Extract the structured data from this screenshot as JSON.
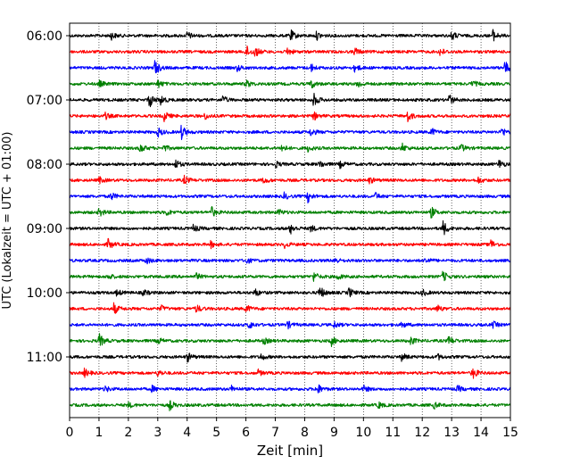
{
  "chart_data": {
    "type": "line",
    "subtype": "helicorder",
    "xlabel": "Zeit  [min]",
    "ylabel": "UTC (Lokalzeit = UTC + 01:00)",
    "xlim": [
      0,
      15
    ],
    "x_ticks": [
      "0",
      "1",
      "2",
      "3",
      "4",
      "5",
      "6",
      "7",
      "8",
      "9",
      "10",
      "11",
      "12",
      "13",
      "14",
      "15"
    ],
    "grid": {
      "vertical_minutes": true,
      "style": "dotted"
    },
    "y_tick_labels": [
      "06:00",
      "07:00",
      "08:00",
      "09:00",
      "10:00",
      "11:00"
    ],
    "trace_colors": [
      "#000000",
      "#ff0000",
      "#0000ff",
      "#008000"
    ],
    "rows": [
      {
        "time": "06:00",
        "color": "#000000",
        "events": [
          [
            1.4,
            0.5
          ],
          [
            4.0,
            0.5
          ],
          [
            7.5,
            0.8
          ],
          [
            8.4,
            0.5
          ],
          [
            13.0,
            0.6
          ],
          [
            14.4,
            0.7
          ]
        ]
      },
      {
        "time": "06:15",
        "color": "#ff0000",
        "events": [
          [
            6.0,
            0.8
          ],
          [
            6.3,
            0.6
          ],
          [
            7.4,
            0.5
          ],
          [
            9.7,
            0.5
          ],
          [
            12.6,
            0.5
          ]
        ]
      },
      {
        "time": "06:30",
        "color": "#0000ff",
        "events": [
          [
            2.9,
            1.0
          ],
          [
            5.7,
            0.4
          ],
          [
            8.2,
            0.5
          ],
          [
            9.7,
            0.5
          ],
          [
            14.8,
            0.9
          ]
        ]
      },
      {
        "time": "06:45",
        "color": "#008000",
        "events": [
          [
            1.0,
            0.4
          ],
          [
            3.0,
            0.5
          ],
          [
            6.0,
            0.5
          ],
          [
            8.2,
            0.6
          ],
          [
            9.8,
            0.5
          ],
          [
            13.7,
            0.4
          ]
        ]
      },
      {
        "time": "07:00",
        "color": "#000000",
        "events": [
          [
            2.7,
            1.0
          ],
          [
            3.1,
            0.6
          ],
          [
            5.2,
            0.5
          ],
          [
            8.3,
            0.9
          ],
          [
            12.9,
            0.7
          ]
        ]
      },
      {
        "time": "07:15",
        "color": "#ff0000",
        "events": [
          [
            1.2,
            0.4
          ],
          [
            3.2,
            0.7
          ],
          [
            4.6,
            0.4
          ],
          [
            8.3,
            0.5
          ],
          [
            11.5,
            0.7
          ],
          [
            15.0,
            0.5
          ]
        ]
      },
      {
        "time": "07:30",
        "color": "#0000ff",
        "events": [
          [
            3.0,
            0.6
          ],
          [
            3.8,
            0.9
          ],
          [
            8.2,
            0.5
          ],
          [
            12.3,
            0.5
          ],
          [
            14.7,
            0.6
          ]
        ]
      },
      {
        "time": "07:45",
        "color": "#008000",
        "events": [
          [
            2.4,
            0.6
          ],
          [
            3.2,
            0.4
          ],
          [
            7.2,
            0.5
          ],
          [
            8.1,
            0.4
          ],
          [
            11.3,
            0.6
          ],
          [
            13.3,
            0.5
          ]
        ]
      },
      {
        "time": "08:00",
        "color": "#000000",
        "events": [
          [
            3.6,
            0.6
          ],
          [
            7.0,
            0.4
          ],
          [
            8.5,
            0.5
          ],
          [
            9.2,
            0.4
          ],
          [
            14.6,
            0.6
          ]
        ]
      },
      {
        "time": "08:15",
        "color": "#ff0000",
        "events": [
          [
            1.0,
            0.4
          ],
          [
            3.9,
            0.5
          ],
          [
            6.6,
            0.4
          ],
          [
            10.2,
            0.4
          ],
          [
            13.9,
            0.4
          ]
        ]
      },
      {
        "time": "08:30",
        "color": "#0000ff",
        "events": [
          [
            1.4,
            0.5
          ],
          [
            7.3,
            0.4
          ],
          [
            8.1,
            0.7
          ],
          [
            10.4,
            0.4
          ]
        ]
      },
      {
        "time": "08:45",
        "color": "#008000",
        "events": [
          [
            1.0,
            0.6
          ],
          [
            3.3,
            0.4
          ],
          [
            4.8,
            0.8
          ],
          [
            7.1,
            0.4
          ],
          [
            12.3,
            0.7
          ]
        ]
      },
      {
        "time": "09:00",
        "color": "#000000",
        "events": [
          [
            4.2,
            0.5
          ],
          [
            7.5,
            0.7
          ],
          [
            8.2,
            0.4
          ],
          [
            12.7,
            1.0
          ]
        ]
      },
      {
        "time": "09:15",
        "color": "#ff0000",
        "events": [
          [
            1.3,
            0.7
          ],
          [
            4.8,
            0.4
          ],
          [
            7.3,
            0.4
          ],
          [
            14.3,
            0.7
          ]
        ]
      },
      {
        "time": "09:30",
        "color": "#0000ff",
        "events": [
          [
            2.6,
            0.4
          ],
          [
            6.0,
            0.4
          ],
          [
            9.0,
            0.4
          ],
          [
            12.1,
            0.4
          ]
        ]
      },
      {
        "time": "09:45",
        "color": "#008000",
        "events": [
          [
            1.3,
            0.4
          ],
          [
            4.3,
            0.4
          ],
          [
            8.3,
            0.6
          ],
          [
            9.1,
            0.4
          ],
          [
            12.7,
            0.7
          ]
        ]
      },
      {
        "time": "10:00",
        "color": "#000000",
        "events": [
          [
            1.6,
            0.4
          ],
          [
            2.5,
            0.4
          ],
          [
            6.3,
            0.5
          ],
          [
            8.5,
            0.9
          ],
          [
            9.5,
            0.6
          ],
          [
            12.0,
            0.4
          ]
        ]
      },
      {
        "time": "10:15",
        "color": "#ff0000",
        "events": [
          [
            1.5,
            0.7
          ],
          [
            3.1,
            0.4
          ],
          [
            4.3,
            0.5
          ],
          [
            6.0,
            0.5
          ],
          [
            12.5,
            0.5
          ]
        ]
      },
      {
        "time": "10:30",
        "color": "#0000ff",
        "events": [
          [
            6.1,
            0.5
          ],
          [
            7.4,
            0.5
          ],
          [
            9.0,
            0.4
          ],
          [
            11.3,
            0.4
          ],
          [
            14.4,
            0.4
          ]
        ]
      },
      {
        "time": "10:45",
        "color": "#008000",
        "events": [
          [
            1.0,
            0.9
          ],
          [
            3.0,
            0.4
          ],
          [
            6.6,
            0.4
          ],
          [
            8.9,
            0.6
          ],
          [
            11.6,
            0.5
          ],
          [
            12.9,
            0.6
          ]
        ]
      },
      {
        "time": "11:00",
        "color": "#000000",
        "events": [
          [
            4.0,
            0.6
          ],
          [
            6.5,
            0.4
          ],
          [
            11.3,
            0.5
          ],
          [
            12.5,
            0.4
          ]
        ]
      },
      {
        "time": "11:15",
        "color": "#ff0000",
        "events": [
          [
            0.5,
            0.5
          ],
          [
            3.0,
            0.4
          ],
          [
            6.4,
            0.4
          ],
          [
            13.7,
            0.8
          ]
        ]
      },
      {
        "time": "11:30",
        "color": "#0000ff",
        "events": [
          [
            1.2,
            0.4
          ],
          [
            2.8,
            0.4
          ],
          [
            5.5,
            0.4
          ],
          [
            8.4,
            0.8
          ],
          [
            10.0,
            0.4
          ],
          [
            13.2,
            0.4
          ]
        ]
      },
      {
        "time": "11:45",
        "color": "#008000",
        "events": [
          [
            2.0,
            0.3
          ],
          [
            3.4,
            0.6
          ],
          [
            10.5,
            0.4
          ],
          [
            12.4,
            0.4
          ]
        ]
      }
    ]
  }
}
